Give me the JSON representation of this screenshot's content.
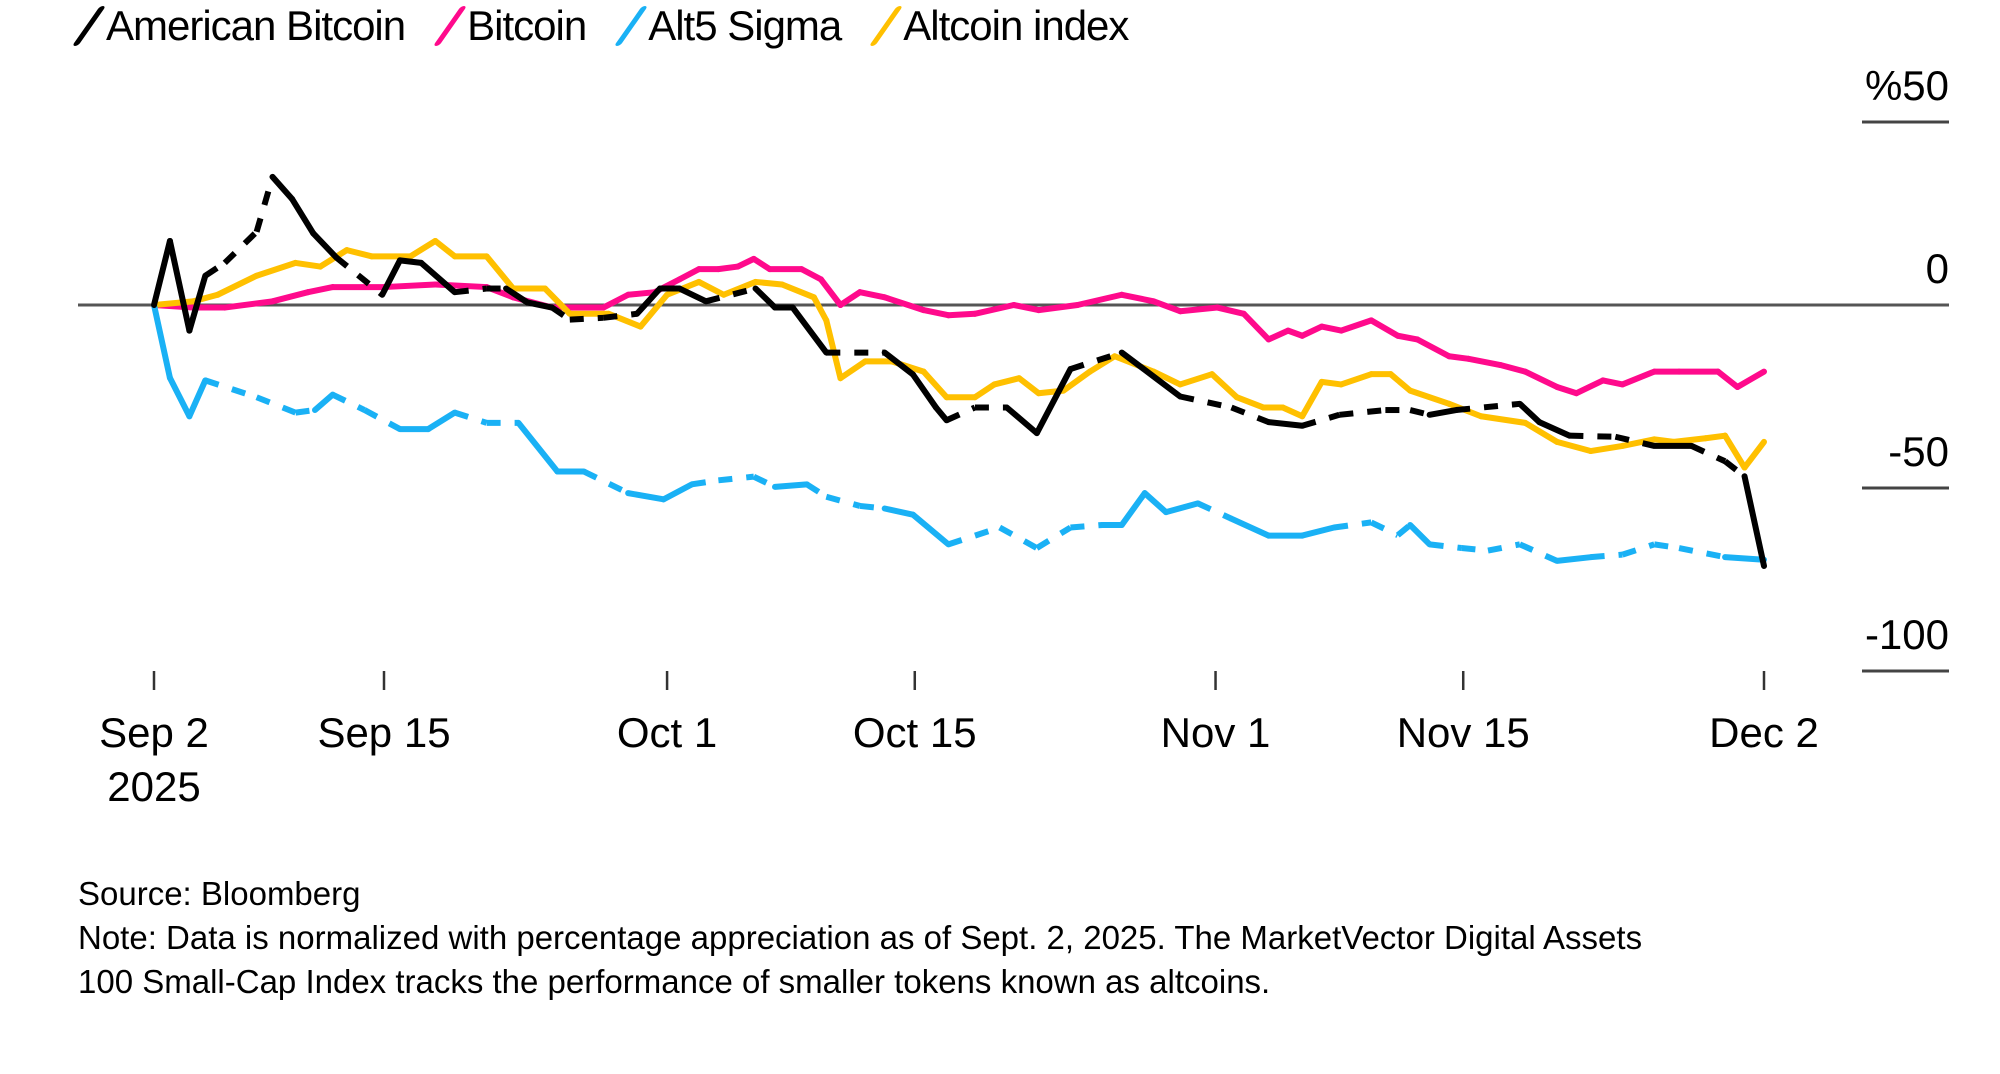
{
  "chart_data": {
    "type": "line",
    "title": "",
    "xlabel": "",
    "ylabel": "",
    "ylim": [
      -100,
      50
    ],
    "xlim_days": [
      0,
      91
    ],
    "y_ticks": [
      {
        "value": 50,
        "label": "%50"
      },
      {
        "value": 0,
        "label": "0"
      },
      {
        "value": -50,
        "label": "-50"
      },
      {
        "value": -100,
        "label": "-100"
      }
    ],
    "x_ticks": [
      {
        "day": 0,
        "label": "Sep 2",
        "sublabel": "2025"
      },
      {
        "day": 13,
        "label": "Sep 15"
      },
      {
        "day": 29,
        "label": "Oct 1"
      },
      {
        "day": 43,
        "label": "Oct 15"
      },
      {
        "day": 60,
        "label": "Nov 1"
      },
      {
        "day": 74,
        "label": "Nov 15"
      },
      {
        "day": 91,
        "label": "Dec 2"
      }
    ],
    "grid": "horizontal at y-ticks, zero line full width",
    "legend_position": "top-left",
    "series": [
      {
        "name": "American Bitcoin",
        "color": "#000000",
        "points": [
          [
            0,
            0
          ],
          [
            0.9,
            17.5
          ],
          [
            2,
            -7
          ],
          [
            2.9,
            8
          ],
          [
            4,
            11.5
          ],
          [
            5.8,
            20
          ],
          [
            6.7,
            35
          ],
          [
            7.8,
            29
          ],
          [
            9,
            19.6
          ],
          [
            10.3,
            13
          ],
          [
            12.9,
            2.8
          ],
          [
            13.9,
            12.2
          ],
          [
            15.1,
            11.5
          ],
          [
            17,
            3.5
          ],
          [
            18.8,
            4.5
          ],
          [
            19.9,
            4.5
          ],
          [
            21.1,
            0.7
          ],
          [
            22.5,
            -0.7
          ],
          [
            23.5,
            -4
          ],
          [
            25.4,
            -3.5
          ],
          [
            27.3,
            -2.4
          ],
          [
            28.6,
            4.5
          ],
          [
            29.7,
            4.5
          ],
          [
            31.2,
            1
          ],
          [
            34,
            4.5
          ],
          [
            35.1,
            -0.7
          ],
          [
            36.1,
            -0.7
          ],
          [
            38,
            -13
          ],
          [
            41.3,
            -13
          ],
          [
            42.9,
            -19
          ],
          [
            44.2,
            -28
          ],
          [
            44.8,
            -31.5
          ],
          [
            46.4,
            -28
          ],
          [
            48.2,
            -28
          ],
          [
            49.9,
            -35
          ],
          [
            51.8,
            -17.5
          ],
          [
            54.7,
            -13
          ],
          [
            58,
            -25
          ],
          [
            60.9,
            -28
          ],
          [
            63,
            -32
          ],
          [
            64.9,
            -33
          ],
          [
            67,
            -30
          ],
          [
            69.6,
            -28.7
          ],
          [
            71,
            -28.7
          ],
          [
            72.1,
            -30
          ],
          [
            73.6,
            -28.7
          ],
          [
            77.2,
            -27
          ],
          [
            78.3,
            -32
          ],
          [
            80,
            -35.7
          ],
          [
            82.6,
            -36
          ],
          [
            84.8,
            -38.5
          ],
          [
            86.9,
            -38.5
          ],
          [
            88.8,
            -42.7
          ],
          [
            89.9,
            -46.8
          ],
          [
            91,
            -71.3
          ]
        ],
        "dashed_ranges": [
          [
            3,
            6.7
          ],
          [
            10,
            13
          ],
          [
            17,
            20
          ],
          [
            23,
            27
          ],
          [
            31,
            34
          ],
          [
            38,
            41
          ],
          [
            45,
            48
          ],
          [
            52,
            54
          ],
          [
            58,
            62
          ],
          [
            65,
            72
          ],
          [
            74,
            77
          ],
          [
            80,
            85
          ],
          [
            86,
            90
          ]
        ]
      },
      {
        "name": "Bitcoin",
        "color": "#ff0a8c",
        "points": [
          [
            0,
            0
          ],
          [
            2.2,
            -0.7
          ],
          [
            4,
            -0.7
          ],
          [
            6.7,
            1
          ],
          [
            8.7,
            3.5
          ],
          [
            10.1,
            4.9
          ],
          [
            13,
            4.9
          ],
          [
            15.9,
            5.6
          ],
          [
            18.8,
            4.9
          ],
          [
            20.3,
            2.1
          ],
          [
            22.5,
            -0.7
          ],
          [
            25.4,
            -0.7
          ],
          [
            26.8,
            2.8
          ],
          [
            28.3,
            3.5
          ],
          [
            29.7,
            7
          ],
          [
            30.8,
            9.8
          ],
          [
            31.9,
            9.8
          ],
          [
            33,
            10.5
          ],
          [
            33.9,
            12.6
          ],
          [
            34.8,
            9.8
          ],
          [
            36.6,
            9.8
          ],
          [
            37.7,
            7
          ],
          [
            38.8,
            0
          ],
          [
            39.9,
            3.5
          ],
          [
            41.3,
            2.1
          ],
          [
            43.5,
            -1.4
          ],
          [
            44.9,
            -2.8
          ],
          [
            46.4,
            -2.4
          ],
          [
            48.6,
            0
          ],
          [
            50,
            -1.4
          ],
          [
            52.2,
            0
          ],
          [
            54.7,
            2.8
          ],
          [
            56.5,
            1
          ],
          [
            58,
            -1.7
          ],
          [
            60.1,
            -0.7
          ],
          [
            61.6,
            -2.4
          ],
          [
            63,
            -9.4
          ],
          [
            64.1,
            -7
          ],
          [
            64.9,
            -8.4
          ],
          [
            66,
            -5.9
          ],
          [
            67.1,
            -7
          ],
          [
            68.8,
            -4.2
          ],
          [
            70.3,
            -8.4
          ],
          [
            71.4,
            -9.4
          ],
          [
            73.2,
            -14
          ],
          [
            74.3,
            -14.7
          ],
          [
            76.1,
            -16.4
          ],
          [
            77.5,
            -18.2
          ],
          [
            79.3,
            -22.4
          ],
          [
            80.4,
            -24.1
          ],
          [
            81.9,
            -20.6
          ],
          [
            83,
            -21.7
          ],
          [
            84.8,
            -18.2
          ],
          [
            86.2,
            -18.2
          ],
          [
            88.4,
            -18.2
          ],
          [
            89.5,
            -22.4
          ],
          [
            91,
            -18.2
          ]
        ],
        "dashed_ranges": []
      },
      {
        "name": "Alt5 Sigma",
        "color": "#1ab1f5",
        "points": [
          [
            0,
            0
          ],
          [
            0.9,
            -19.9
          ],
          [
            2,
            -30.4
          ],
          [
            2.9,
            -20.6
          ],
          [
            5.8,
            -25.2
          ],
          [
            8,
            -29.4
          ],
          [
            9.1,
            -28.7
          ],
          [
            10.1,
            -24.5
          ],
          [
            11.9,
            -28.7
          ],
          [
            13.9,
            -33.9
          ],
          [
            15.5,
            -33.9
          ],
          [
            17,
            -29.4
          ],
          [
            18.8,
            -32.2
          ],
          [
            20.6,
            -32.2
          ],
          [
            22.8,
            -45.5
          ],
          [
            24.3,
            -45.5
          ],
          [
            26.8,
            -51.4
          ],
          [
            28.8,
            -53.1
          ],
          [
            30.4,
            -49
          ],
          [
            31.9,
            -47.9
          ],
          [
            33.9,
            -46.9
          ],
          [
            35.1,
            -49.7
          ],
          [
            36.9,
            -49
          ],
          [
            38,
            -52.4
          ],
          [
            39.9,
            -54.9
          ],
          [
            41.3,
            -55.6
          ],
          [
            42.9,
            -57.3
          ],
          [
            44.9,
            -65.4
          ],
          [
            47.8,
            -60.8
          ],
          [
            49.9,
            -66.4
          ],
          [
            51.8,
            -60.8
          ],
          [
            53.6,
            -60.1
          ],
          [
            54.7,
            -60.1
          ],
          [
            56,
            -51.4
          ],
          [
            57.2,
            -56.6
          ],
          [
            59,
            -54.2
          ],
          [
            60.9,
            -58.4
          ],
          [
            63,
            -63
          ],
          [
            64.9,
            -63
          ],
          [
            66.7,
            -60.8
          ],
          [
            68.8,
            -59.4
          ],
          [
            70.3,
            -62.9
          ],
          [
            71,
            -60.1
          ],
          [
            72.1,
            -65.4
          ],
          [
            73.9,
            -66.4
          ],
          [
            75.4,
            -67.1
          ],
          [
            77.2,
            -65.4
          ],
          [
            79.3,
            -69.9
          ],
          [
            81.2,
            -68.9
          ],
          [
            83,
            -68.2
          ],
          [
            84.8,
            -65.4
          ],
          [
            86.2,
            -66.4
          ],
          [
            88.8,
            -68.9
          ],
          [
            91,
            -69.6
          ]
        ],
        "dashed_ranges": [
          [
            3,
            9
          ],
          [
            11,
            13
          ],
          [
            17,
            21
          ],
          [
            24,
            26
          ],
          [
            31,
            35
          ],
          [
            37,
            41
          ],
          [
            46,
            53
          ],
          [
            59,
            61
          ],
          [
            66,
            71
          ],
          [
            73,
            80
          ],
          [
            81,
            88
          ]
        ]
      },
      {
        "name": "Altcoin index",
        "color": "#ffc000",
        "points": [
          [
            0,
            0
          ],
          [
            2.2,
            1
          ],
          [
            3.6,
            2.8
          ],
          [
            5.8,
            8
          ],
          [
            8,
            11.5
          ],
          [
            9.4,
            10.5
          ],
          [
            10.9,
            15
          ],
          [
            12.3,
            13.3
          ],
          [
            14.5,
            13.3
          ],
          [
            15.9,
            17.5
          ],
          [
            17,
            13.3
          ],
          [
            18.8,
            13.3
          ],
          [
            20.3,
            4.5
          ],
          [
            22.1,
            4.5
          ],
          [
            23.5,
            -2.4
          ],
          [
            25.7,
            -2.4
          ],
          [
            27.5,
            -5.9
          ],
          [
            29,
            2.8
          ],
          [
            30.8,
            6.3
          ],
          [
            32.2,
            2.8
          ],
          [
            34,
            6.3
          ],
          [
            35.5,
            5.6
          ],
          [
            37.3,
            2.1
          ],
          [
            38,
            -4.2
          ],
          [
            38.8,
            -20
          ],
          [
            40.2,
            -15.4
          ],
          [
            41.7,
            -15.4
          ],
          [
            43.5,
            -18.2
          ],
          [
            44.8,
            -25.2
          ],
          [
            46.4,
            -25.2
          ],
          [
            47.5,
            -21.7
          ],
          [
            48.9,
            -20
          ],
          [
            50,
            -24.1
          ],
          [
            51.4,
            -23.4
          ],
          [
            52.9,
            -18.2
          ],
          [
            54.3,
            -14
          ],
          [
            56.5,
            -18.2
          ],
          [
            58,
            -21.7
          ],
          [
            59.8,
            -18.9
          ],
          [
            61.2,
            -25.2
          ],
          [
            62.7,
            -28
          ],
          [
            63.8,
            -28
          ],
          [
            64.9,
            -30.4
          ],
          [
            66,
            -21
          ],
          [
            67.1,
            -21.7
          ],
          [
            68.8,
            -18.9
          ],
          [
            69.9,
            -18.9
          ],
          [
            71,
            -23.4
          ],
          [
            73.2,
            -27
          ],
          [
            75,
            -30.4
          ],
          [
            77.5,
            -32.2
          ],
          [
            79.3,
            -37.4
          ],
          [
            81.2,
            -39.9
          ],
          [
            83,
            -38.5
          ],
          [
            84.8,
            -36.7
          ],
          [
            85.9,
            -37.4
          ],
          [
            87.7,
            -36.4
          ],
          [
            88.8,
            -35.7
          ],
          [
            89.9,
            -44.4
          ],
          [
            91,
            -37.4
          ]
        ],
        "dashed_ranges": []
      }
    ]
  },
  "legend": [
    {
      "label": "American Bitcoin",
      "color": "#000000"
    },
    {
      "label": "Bitcoin",
      "color": "#ff0a8c"
    },
    {
      "label": "Alt5 Sigma",
      "color": "#1ab1f5"
    },
    {
      "label": "Altcoin index",
      "color": "#ffc000"
    }
  ],
  "footer": {
    "source": "Source: Bloomberg",
    "note_line1": "Note: Data is normalized with percentage appreciation as of Sept. 2, 2025. The MarketVector Digital Assets",
    "note_line2": "100 Small-Cap Index tracks the performance of smaller tokens known as altcoins."
  }
}
